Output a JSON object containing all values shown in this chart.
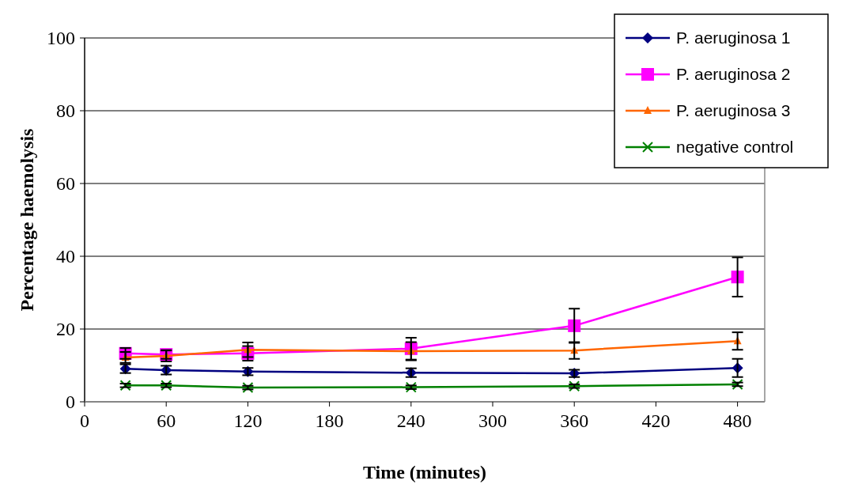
{
  "chart_data": {
    "type": "line",
    "xlabel": "Time (minutes)",
    "ylabel": "Percentage haemolysis",
    "x": [
      30,
      60,
      120,
      240,
      360,
      480
    ],
    "xlim": [
      0,
      500
    ],
    "xticks": [
      0,
      60,
      120,
      180,
      240,
      300,
      360,
      420,
      480
    ],
    "ylim": [
      0,
      100
    ],
    "yticks": [
      0,
      20,
      40,
      60,
      80,
      100
    ],
    "grid": "y",
    "legend": "top right",
    "series": [
      {
        "name": "P. aeruginosa 1",
        "color": "#000080",
        "marker": "diamond",
        "values": [
          9.1,
          8.7,
          8.3,
          8.0,
          7.8,
          9.3
        ],
        "errors": [
          1.2,
          1.2,
          1.0,
          1.2,
          1.0,
          2.5
        ]
      },
      {
        "name": "P. aeruginosa 2",
        "color": "#ff00ff",
        "marker": "square",
        "values": [
          13.3,
          13.0,
          13.3,
          14.6,
          20.9,
          34.3
        ],
        "errors": [
          1.5,
          1.2,
          2.0,
          3.0,
          4.7,
          5.4
        ]
      },
      {
        "name": "P. aeruginosa 3",
        "color": "#ff6600",
        "marker": "triangle",
        "values": [
          12.2,
          12.6,
          14.3,
          13.9,
          14.1,
          16.7
        ],
        "errors": [
          1.5,
          1.5,
          2.0,
          2.5,
          2.3,
          2.4
        ]
      },
      {
        "name": "negative control",
        "color": "#008000",
        "marker": "cross",
        "values": [
          4.5,
          4.5,
          3.9,
          4.0,
          4.3,
          4.8
        ],
        "errors": [
          0.5,
          0.5,
          0.5,
          0.5,
          0.5,
          0.5
        ]
      }
    ]
  }
}
